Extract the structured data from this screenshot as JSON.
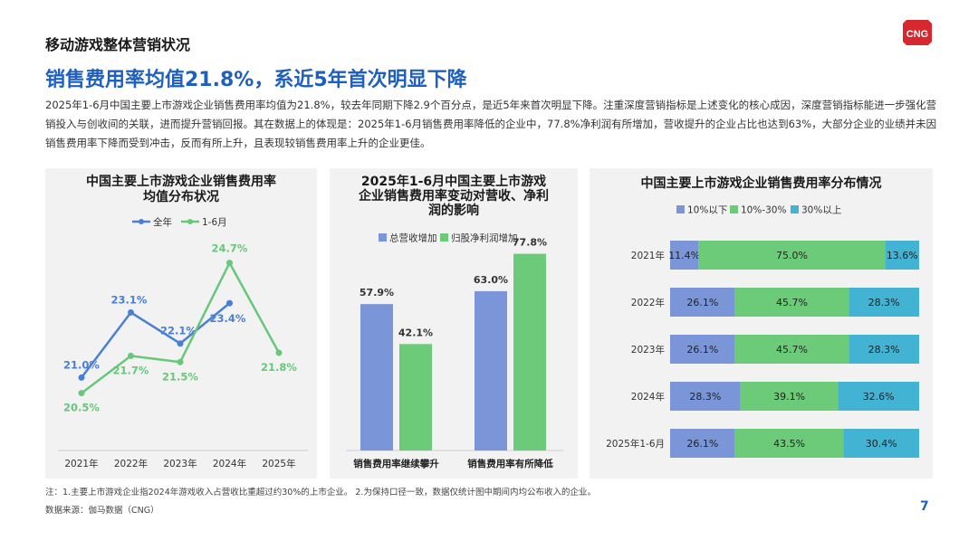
{
  "header": {
    "section_title": "移动游戏整体营销状况",
    "logo_text": "CNG",
    "headline": "销售费用率均值21.8%，系近5年首次明显下降",
    "description": "2025年1-6月中国主要上市游戏企业销售费用率均值为21.8%，较去年同期下降2.9个百分点，是近5年来首次明显下降。注重深度营销指标是上述变化的核心成因，深度营销指标能进一步强化营销投入与创收间的关联，进而提升营销回报。其在数据上的体现是：2025年1-6月销售费用率降低的企业中，77.8%净利润有所增加，营收提升的企业占比也达到63%，大部分企业的业绩并未因销售费用率下降而受到冲击，反而有所上升，且表现较销售费用率上升的企业更佳。"
  },
  "footer": {
    "note": "注：1.主要上市游戏企业指2024年游戏收入占营收比重超过约30%的上市企业。 2.为保持口径一致，数据仅统计图中期间内均公布收入的企业。",
    "source": "数据来源：伽马数据（CNG）",
    "page": "7"
  },
  "colors": {
    "blue": "#4a7fd6",
    "green": "#67c77a",
    "bar_blue": "#7b96d8",
    "bar_green": "#6ccb78",
    "teal": "#42b3d3",
    "headline": "#1f5fbf"
  },
  "chart_data": [
    {
      "type": "line",
      "title": "中国主要上市游戏企业销售费用率均值分布状况",
      "categories": [
        "2021年",
        "2022年",
        "2023年",
        "2024年",
        "2025年"
      ],
      "series": [
        {
          "name": "全年",
          "values": [
            21.0,
            23.1,
            22.1,
            23.4,
            null
          ],
          "labels": [
            "21.0%",
            "23.1%",
            "22.1%",
            "23.4%",
            ""
          ]
        },
        {
          "name": "1-6月",
          "values": [
            20.5,
            21.7,
            21.5,
            24.7,
            21.8
          ],
          "labels": [
            "20.5%",
            "21.7%",
            "21.5%",
            "24.7%",
            "21.8%"
          ]
        }
      ],
      "ylim": [
        19,
        26
      ]
    },
    {
      "type": "bar",
      "title": "2025年1-6月中国主要上市游戏企业销售费用率变动对营收、净利润的影响",
      "categories": [
        "销售费用率继续攀升",
        "销售费用率有所降低"
      ],
      "series": [
        {
          "name": "总营收增加",
          "values": [
            57.9,
            63.0
          ],
          "labels": [
            "57.9%",
            "63.0%"
          ]
        },
        {
          "name": "归股净利润增加",
          "values": [
            42.1,
            77.8
          ],
          "labels": [
            "42.1%",
            "77.8%"
          ]
        }
      ],
      "ylim": [
        0,
        90
      ]
    },
    {
      "type": "bar",
      "stacked": "percent",
      "orientation": "horizontal",
      "title": "中国主要上市游戏企业销售费用率分布情况",
      "categories": [
        "2021年",
        "2022年",
        "2023年",
        "2024年",
        "2025年1-6月"
      ],
      "series": [
        {
          "name": "10%以下",
          "values": [
            11.4,
            26.1,
            26.1,
            28.3,
            26.1
          ],
          "labels": [
            "11.4%",
            "26.1%",
            "26.1%",
            "28.3%",
            "26.1%"
          ]
        },
        {
          "name": "10%-30%",
          "values": [
            75.0,
            45.7,
            45.7,
            39.1,
            43.5
          ],
          "labels": [
            "75.0%",
            "45.7%",
            "45.7%",
            "39.1%",
            "43.5%"
          ]
        },
        {
          "name": "30%以上",
          "values": [
            13.6,
            28.3,
            28.3,
            32.6,
            30.4
          ],
          "labels": [
            "13.6%",
            "28.3%",
            "28.3%",
            "32.6%",
            "30.4%"
          ]
        }
      ]
    }
  ]
}
